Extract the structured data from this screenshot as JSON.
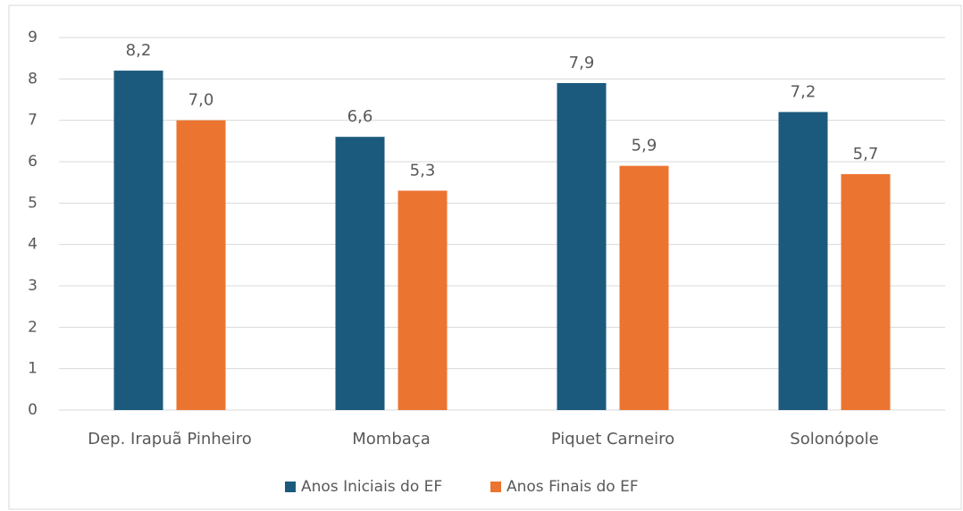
{
  "chart_data": {
    "type": "bar",
    "categories": [
      "Dep. Irapuã Pinheiro",
      "Mombaça",
      "Piquet Carneiro",
      "Solonópole"
    ],
    "series": [
      {
        "name": "Anos Iniciais do EF",
        "color": "#1b5a7d",
        "values": [
          8.2,
          6.6,
          7.9,
          7.2
        ],
        "value_labels": [
          "8,2",
          "6,6",
          "7,9",
          "7,2"
        ]
      },
      {
        "name": "Anos Finais do EF",
        "color": "#ec7431",
        "values": [
          7.0,
          5.3,
          5.9,
          5.7
        ],
        "value_labels": [
          "7,0",
          "5,3",
          "5,9",
          "5,7"
        ]
      }
    ],
    "ylim": [
      0,
      9
    ],
    "yticks": [
      0,
      1,
      2,
      3,
      4,
      5,
      6,
      7,
      8,
      9
    ],
    "grid": true,
    "legend": "bottom"
  }
}
